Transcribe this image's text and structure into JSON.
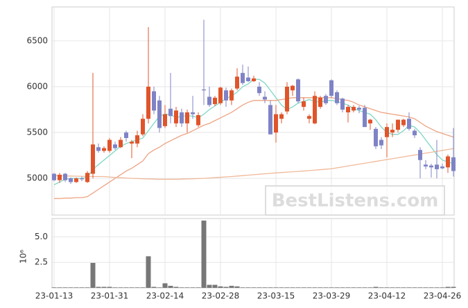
{
  "watermark": "BestListens.com",
  "chart_data": [
    {
      "type": "candlestick",
      "ylim": [
        4600,
        6870
      ],
      "yticks": [
        5000,
        5500,
        6000,
        6500
      ],
      "grid": true,
      "up_color": "#e0542a",
      "down_color": "#7f83c6",
      "open": [
        5050,
        4980,
        5050,
        5000,
        4960,
        5000,
        4960,
        5050,
        5340,
        5300,
        5300,
        5370,
        5340,
        5500,
        5380,
        5380,
        5480,
        5650,
        5950,
        5850,
        5570,
        5760,
        5600,
        5720,
        5600,
        5720,
        5580,
        5970,
        5890,
        5810,
        5820,
        5960,
        5850,
        5980,
        6150,
        6100,
        6060,
        6000,
        5890,
        5800,
        5500,
        5650,
        5730,
        5960,
        6080,
        5780,
        5650,
        5600,
        5780,
        5900,
        6070,
        5940,
        5870,
        5720,
        5740,
        5770,
        5770,
        5600,
        5540,
        5420,
        5450,
        5500,
        5530,
        5580,
        5650,
        5520,
        5310,
        5150,
        5140,
        5150,
        5130,
        5120,
        5230
      ],
      "high": [
        5060,
        5060,
        5060,
        5010,
        5010,
        5020,
        5080,
        6150,
        5380,
        5350,
        5440,
        5400,
        5450,
        5520,
        5420,
        5520,
        5700,
        6650,
        6000,
        5900,
        5800,
        6150,
        5780,
        5760,
        5750,
        5900,
        5720,
        6730,
        6000,
        5900,
        6000,
        5990,
        5980,
        6200,
        6240,
        6220,
        6120,
        6050,
        5950,
        5850,
        5800,
        5720,
        6050,
        6020,
        6090,
        5880,
        5700,
        5950,
        5900,
        5920,
        6080,
        5960,
        5880,
        5800,
        5800,
        5790,
        5800,
        5650,
        5560,
        5450,
        5600,
        5600,
        5640,
        5650,
        5720,
        5540,
        5340,
        5200,
        5160,
        5420,
        5160,
        5260,
        5550
      ],
      "low": [
        4970,
        4950,
        4960,
        4940,
        4950,
        4970,
        4950,
        5000,
        5280,
        5280,
        5280,
        5310,
        5330,
        5400,
        5220,
        5340,
        5460,
        5600,
        5700,
        5500,
        5550,
        5600,
        5560,
        5560,
        5500,
        5650,
        5560,
        5800,
        5780,
        5790,
        5800,
        5780,
        5800,
        5960,
        6020,
        6050,
        6050,
        5900,
        5820,
        5480,
        5390,
        5600,
        5700,
        5900,
        5820,
        5740,
        5600,
        5590,
        5760,
        5800,
        5880,
        5800,
        5720,
        5610,
        5720,
        5710,
        5580,
        5530,
        5320,
        5320,
        5230,
        5450,
        5500,
        5560,
        5520,
        5440,
        5000,
        5100,
        5010,
        5000,
        5100,
        5060,
        5020
      ],
      "close": [
        4980,
        5040,
        4980,
        4960,
        5000,
        4990,
        5060,
        5370,
        5300,
        5330,
        5420,
        5330,
        5420,
        5440,
        5400,
        5470,
        5650,
        6000,
        5740,
        5550,
        5700,
        5680,
        5740,
        5600,
        5720,
        5700,
        5690,
        5960,
        5800,
        5880,
        5990,
        5850,
        5960,
        6110,
        6040,
        6060,
        6090,
        5930,
        5860,
        5480,
        5700,
        5700,
        6000,
        6010,
        5840,
        5840,
        5680,
        5900,
        5880,
        5820,
        5900,
        5820,
        5750,
        5780,
        5780,
        5750,
        5560,
        5640,
        5350,
        5360,
        5560,
        5530,
        5640,
        5640,
        5540,
        5470,
        5200,
        5130,
        5120,
        5100,
        5110,
        5240,
        5080
      ],
      "lines": [
        {
          "color": "#7fd6c4",
          "values": [
            4930,
            4960,
            4990,
            5000,
            5000,
            5000,
            5010,
            5100,
            5150,
            5200,
            5250,
            5300,
            5350,
            5380,
            5400,
            5420,
            5440,
            5520,
            5600,
            5680,
            5700,
            5700,
            5660,
            5680,
            5680,
            5680,
            5660,
            5700,
            5750,
            5790,
            5830,
            5870,
            5900,
            5940,
            6000,
            6030,
            6080,
            6080,
            6040,
            5960,
            5880,
            5800,
            5750,
            5780,
            5820,
            5840,
            5860,
            5840,
            5830,
            5850,
            5850,
            5840,
            5820,
            5800,
            5760,
            5740,
            5720,
            5700,
            5640,
            5560,
            5500,
            5480,
            5480,
            5520,
            5580,
            5560,
            5500,
            5420,
            5340,
            5260,
            5200,
            5180,
            5160
          ]
        },
        {
          "color": "#eda383",
          "values": [
            4780,
            4780,
            4785,
            4785,
            4790,
            4790,
            4800,
            4840,
            4880,
            4920,
            4960,
            5000,
            5040,
            5080,
            5110,
            5150,
            5190,
            5270,
            5310,
            5340,
            5380,
            5410,
            5440,
            5470,
            5490,
            5520,
            5550,
            5580,
            5600,
            5630,
            5660,
            5690,
            5720,
            5760,
            5800,
            5830,
            5850,
            5850,
            5850,
            5850,
            5850,
            5860,
            5870,
            5880,
            5880,
            5880,
            5880,
            5880,
            5880,
            5880,
            5880,
            5870,
            5860,
            5850,
            5830,
            5800,
            5780,
            5760,
            5740,
            5720,
            5710,
            5700,
            5690,
            5680,
            5670,
            5650,
            5610,
            5570,
            5540,
            5510,
            5490,
            5470,
            5450
          ]
        },
        {
          "color": "#f0b899",
          "values": [
            5030,
            5028,
            5026,
            5025,
            5024,
            5023,
            5022,
            5021,
            5020,
            5020,
            5015,
            5010,
            5007,
            5004,
            5000,
            4998,
            4996,
            4994,
            4992,
            4990,
            4990,
            4990,
            4990,
            4992,
            4994,
            4996,
            4998,
            5000,
            5004,
            5008,
            5012,
            5016,
            5020,
            5025,
            5030,
            5035,
            5040,
            5045,
            5050,
            5055,
            5060,
            5064,
            5068,
            5072,
            5076,
            5080,
            5085,
            5090,
            5095,
            5100,
            5105,
            5115,
            5125,
            5135,
            5145,
            5155,
            5165,
            5175,
            5185,
            5195,
            5205,
            5215,
            5225,
            5235,
            5245,
            5255,
            5265,
            5275,
            5285,
            5295,
            5305,
            5315,
            5325
          ]
        }
      ]
    },
    {
      "type": "bar",
      "ylabel": "10⁶",
      "color": "#777777",
      "ylim": [
        0,
        6.8
      ],
      "yticks": [
        2.5,
        {
          "value": 5,
          "label": "5.0"
        }
      ],
      "grid": true,
      "categories": [
        "23-01-13",
        null,
        null,
        null,
        null,
        null,
        null,
        null,
        null,
        null,
        "23-01-31",
        null,
        null,
        null,
        null,
        null,
        null,
        null,
        null,
        null,
        "23-02-14",
        null,
        null,
        null,
        null,
        null,
        null,
        null,
        null,
        null,
        "23-02-28",
        null,
        null,
        null,
        null,
        null,
        null,
        null,
        null,
        null,
        "23-03-15",
        null,
        null,
        null,
        null,
        null,
        null,
        null,
        null,
        null,
        "23-03-29",
        null,
        null,
        null,
        null,
        null,
        null,
        null,
        null,
        null,
        "23-04-12",
        null,
        null,
        null,
        null,
        null,
        null,
        null,
        null,
        null,
        "23-04-26",
        null,
        null
      ],
      "values": [
        0.05,
        0.05,
        0.05,
        0.05,
        0.05,
        0.05,
        0.05,
        2.45,
        0.1,
        0.1,
        0.1,
        0.05,
        0.05,
        0.05,
        0.05,
        0.05,
        0.05,
        3.1,
        0.1,
        0.05,
        0.45,
        0.2,
        0.1,
        0.05,
        0.05,
        0.05,
        0.05,
        6.6,
        0.3,
        0.3,
        0.15,
        0.1,
        0.2,
        0.15,
        0.05,
        0.05,
        0.05,
        0.05,
        0.05,
        0.05,
        0.05,
        0.05,
        0.05,
        0.05,
        0.05,
        0.05,
        0.05,
        0.05,
        0.05,
        0.05,
        0.05,
        0.05,
        0.05,
        0.05,
        0.05,
        0.05,
        0.05,
        0.05,
        0.1,
        0.05,
        0.05,
        0.05,
        0.05,
        0.05,
        0.05,
        0.05,
        0.05,
        0.05,
        0.05,
        0.05,
        0.05,
        0.1,
        0.1
      ]
    }
  ]
}
